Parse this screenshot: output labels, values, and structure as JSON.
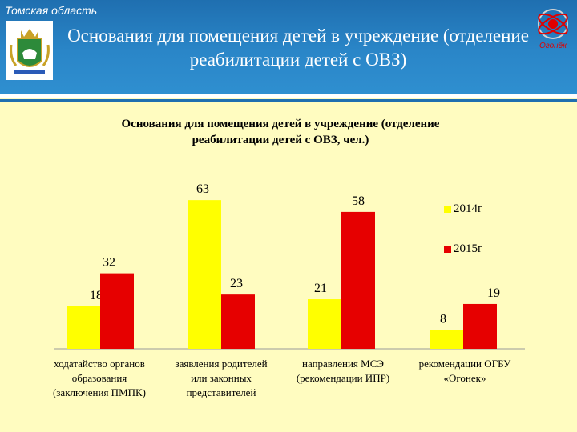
{
  "header": {
    "region": "Томская область",
    "title_line1": "Основания для помещения детей в учреждение (отделение",
    "title_line2": "реабилитации детей с ОВЗ)",
    "logo_text": "Огонёк"
  },
  "colors": {
    "header": "#1f6fb0",
    "background": "#fffcc0",
    "series_2014": "#ffff00",
    "series_2015": "#e60000"
  },
  "chart_data": {
    "type": "bar",
    "title_line1": "Основания для помещения детей в учреждение (отделение",
    "title_line2": "реабилитации детей с ОВЗ, чел.)",
    "categories": [
      [
        "ходатайство органов",
        "образования",
        "(заключения ПМПК)"
      ],
      [
        "заявления родителей",
        "или законных",
        "представителей"
      ],
      [
        "направления МСЭ",
        "(рекомендации ИПР)"
      ],
      [
        "рекомендации ОГБУ",
        "«Огонек»"
      ]
    ],
    "series": [
      {
        "name": "2014г",
        "color": "#ffff00",
        "values": [
          18,
          63,
          21,
          8
        ]
      },
      {
        "name": "2015г",
        "color": "#e60000",
        "values": [
          32,
          23,
          58,
          19
        ]
      }
    ],
    "legend": "right",
    "grid": false
  }
}
